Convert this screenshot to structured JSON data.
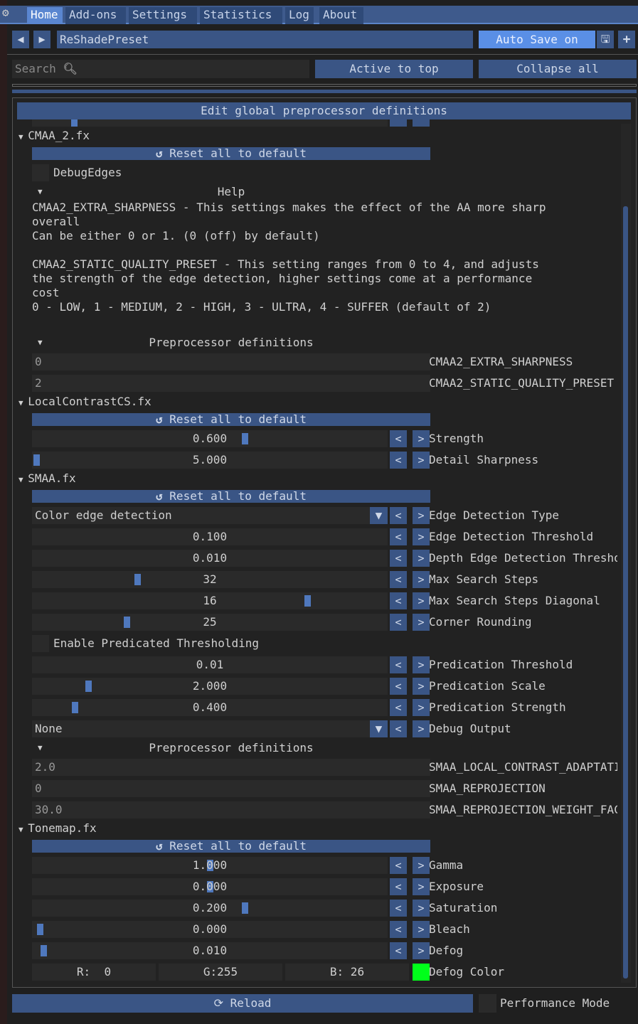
{
  "tabs": [
    {
      "label": "Home",
      "active": true
    },
    {
      "label": "Add-ons"
    },
    {
      "label": "Settings"
    },
    {
      "label": "Statistics"
    },
    {
      "label": "Log"
    },
    {
      "label": "About"
    }
  ],
  "preset": {
    "name": "ReShadePreset",
    "auto_save": "Auto Save on"
  },
  "toolbar": {
    "search_placeholder": "Search",
    "active_to_top": "Active to top",
    "collapse_all": "Collapse all"
  },
  "global_defs": "Edit global preprocessor definitions",
  "reset_label": "Reset all to default",
  "effects": [
    {
      "name": "CMAA_2.fx",
      "rows": [
        {
          "type": "reset"
        },
        {
          "type": "checkbox",
          "label": "DebugEdges",
          "checked": false
        },
        {
          "type": "tree",
          "label": "Help"
        },
        {
          "type": "text",
          "lines": [
            "CMAA2_EXTRA_SHARPNESS - This settings makes the effect of the AA more sharp",
            "overall",
            "Can be either 0 or 1. (0 (off) by default)",
            "",
            "CMAA2_STATIC_QUALITY_PRESET - This setting ranges from 0 to 4, and adjusts",
            "the strength of the edge detection, higher settings come at a performance",
            "cost",
            "0 - LOW, 1 - MEDIUM, 2 - HIGH, 3 - ULTRA, 4 - SUFFER (default of 2)"
          ]
        },
        {
          "type": "gap"
        },
        {
          "type": "tree",
          "label": "Preprocessor definitions"
        },
        {
          "type": "input",
          "value": "0",
          "label": "CMAA2_EXTRA_SHARPNESS"
        },
        {
          "type": "input",
          "value": "2",
          "label": "CMAA2_STATIC_QUALITY_PRESET"
        }
      ]
    },
    {
      "name": "LocalContrastCS.fx",
      "rows": [
        {
          "type": "reset"
        },
        {
          "type": "slider",
          "value": "0.600",
          "label": "Strength",
          "fill": 0.6
        },
        {
          "type": "slider",
          "value": "5.000",
          "label": "Detail Sharpness",
          "fill": 0.0
        }
      ]
    },
    {
      "name": "SMAA.fx",
      "rows": [
        {
          "type": "reset"
        },
        {
          "type": "combo",
          "value": "Color edge detection",
          "label": "Edge Detection Type"
        },
        {
          "type": "slider",
          "value": "0.100",
          "label": "Edge Detection Threshold"
        },
        {
          "type": "slider",
          "value": "0.010",
          "label": "Depth Edge Detection Threshold"
        },
        {
          "type": "slider",
          "value": "32",
          "label": "Max Search Steps",
          "fill": 0.29
        },
        {
          "type": "slider",
          "value": "16",
          "label": "Max Search Steps Diagonal",
          "fill": 0.78
        },
        {
          "type": "slider",
          "value": "25",
          "label": "Corner Rounding",
          "fill": 0.26
        },
        {
          "type": "checkbox",
          "label": "Enable Predicated Thresholding",
          "checked": false
        },
        {
          "type": "slider",
          "value": "0.01",
          "label": "Predication Threshold"
        },
        {
          "type": "slider",
          "value": "2.000",
          "label": "Predication Scale",
          "fill": 0.15
        },
        {
          "type": "slider",
          "value": "0.400",
          "label": "Predication Strength",
          "fill": 0.11
        },
        {
          "type": "combo",
          "value": "None",
          "label": "Debug Output"
        },
        {
          "type": "tree",
          "label": "Preprocessor definitions"
        },
        {
          "type": "input",
          "value": "2.0",
          "label": "SMAA_LOCAL_CONTRAST_ADAPTATION_FACTOR"
        },
        {
          "type": "input",
          "value": "0",
          "label": "SMAA_REPROJECTION"
        },
        {
          "type": "input",
          "value": "30.0",
          "label": "SMAA_REPROJECTION_WEIGHT_FACTOR"
        }
      ]
    },
    {
      "name": "Tonemap.fx",
      "rows": [
        {
          "type": "reset"
        },
        {
          "type": "slider",
          "value": "1.000",
          "label": "Gamma",
          "fill": 0.5
        },
        {
          "type": "slider",
          "value": "0.000",
          "label": "Exposure",
          "fill": 0.5
        },
        {
          "type": "slider",
          "value": "0.200",
          "label": "Saturation",
          "fill": 0.6
        },
        {
          "type": "slider",
          "value": "0.000",
          "label": "Bleach",
          "fill": 0.01
        },
        {
          "type": "slider",
          "value": "0.010",
          "label": "Defog",
          "fill": 0.02
        },
        {
          "type": "color",
          "r": "R:  0",
          "g": "G:255",
          "b": "B: 26",
          "swatch": "#00ff1a",
          "label": "Defog Color"
        }
      ]
    }
  ],
  "footer": {
    "reload": "Reload",
    "performance_mode": "Performance Mode"
  },
  "colors": {
    "accent": "#3a5585",
    "active": "#5a86d0",
    "swatch": "#00ff1a"
  }
}
